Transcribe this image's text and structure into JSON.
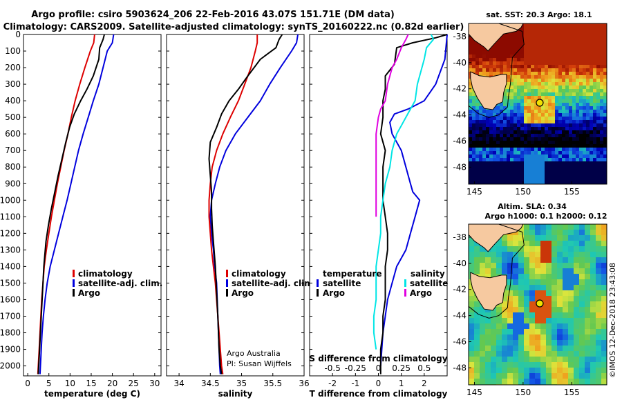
{
  "header": {
    "title_line1": "Argo profile: csiro 5903624_206 22-Feb-2016 43.07S 151.71E (DM data)",
    "title_line2": "Climatology: CARS2009. Satellite-adjusted climatology: synTS_20160222.nc (0.82d earlier)"
  },
  "credit": {
    "line1": "Argo Australia",
    "line2": "PI: Susan Wijffels"
  },
  "watermark": "©IMOS 12-Dec-2018 23:43:08",
  "colors": {
    "climatology": "#dd0000",
    "satellite": "#0000dd",
    "argo": "#000000",
    "sat_salinity": "#00e5e5",
    "argo_salinity": "#e000e0"
  },
  "chart_data": [
    {
      "type": "line",
      "xlabel": "temperature (deg C)",
      "xlim": [
        -1,
        31.5
      ],
      "xticks": [
        0,
        5,
        10,
        15,
        20,
        25,
        30
      ],
      "ylim": [
        2060,
        0
      ],
      "yticks": [
        0,
        100,
        200,
        300,
        400,
        500,
        600,
        700,
        800,
        900,
        1000,
        1100,
        1200,
        1300,
        1400,
        1500,
        1600,
        1700,
        1800,
        1900,
        2000
      ],
      "legend": [
        "climatology",
        "satellite-adj. clim.",
        "Argo"
      ],
      "series": [
        {
          "name": "climatology",
          "color": "#dd0000",
          "x": [
            15.8,
            15.6,
            14.8,
            13.5,
            12.3,
            11.2,
            10.3,
            9.5,
            8.6,
            7.8,
            7.0,
            6.3,
            5.6,
            5.0,
            4.4,
            3.9,
            3.6,
            3.3,
            3.1,
            2.9,
            2.7,
            2.5,
            2.4
          ],
          "y": [
            0,
            50,
            100,
            200,
            300,
            400,
            500,
            600,
            700,
            800,
            900,
            1000,
            1100,
            1200,
            1300,
            1400,
            1500,
            1600,
            1700,
            1800,
            1900,
            2000,
            2050
          ]
        },
        {
          "name": "satellite-adj. clim.",
          "color": "#0000dd",
          "x": [
            20.3,
            20.0,
            18.8,
            17.8,
            16.8,
            15.5,
            14.3,
            13.1,
            12.0,
            11.1,
            10.2,
            9.3,
            8.3,
            7.3,
            6.3,
            5.3,
            4.6,
            4.1,
            3.7,
            3.4,
            3.2,
            3.0,
            2.9
          ],
          "y": [
            0,
            50,
            100,
            200,
            300,
            400,
            500,
            600,
            700,
            800,
            900,
            1000,
            1100,
            1200,
            1300,
            1400,
            1500,
            1600,
            1700,
            1800,
            1900,
            2000,
            2050
          ]
        },
        {
          "name": "Argo",
          "color": "#000000",
          "x": [
            18.1,
            17.8,
            17.0,
            16.8,
            15.5,
            14.0,
            12.5,
            11.0,
            9.9,
            9.0,
            8.1,
            7.2,
            6.4,
            5.6,
            4.9,
            4.3,
            3.8,
            3.5,
            3.2,
            3.0,
            2.8,
            2.6,
            2.5
          ],
          "y": [
            0,
            30,
            80,
            150,
            250,
            330,
            400,
            480,
            560,
            650,
            750,
            850,
            950,
            1050,
            1150,
            1250,
            1400,
            1550,
            1700,
            1800,
            1900,
            2000,
            2050
          ]
        }
      ]
    },
    {
      "type": "line",
      "xlabel": "salinity",
      "xlim": [
        33.8,
        36.0
      ],
      "xticks": [
        34,
        34.5,
        35,
        35.5,
        36
      ],
      "ylim": [
        2060,
        0
      ],
      "legend": [
        "climatology",
        "satellite-adj. clim.",
        "Argo"
      ],
      "series": [
        {
          "name": "climatology",
          "color": "#dd0000",
          "x": [
            35.25,
            35.25,
            35.22,
            35.15,
            35.05,
            34.95,
            34.82,
            34.7,
            34.6,
            34.53,
            34.5,
            34.48,
            34.48,
            34.5,
            34.52,
            34.55,
            34.58,
            34.6,
            34.62,
            34.64,
            34.66,
            34.68,
            34.7
          ],
          "y": [
            0,
            50,
            100,
            200,
            300,
            400,
            500,
            600,
            700,
            800,
            900,
            1000,
            1100,
            1200,
            1300,
            1400,
            1500,
            1600,
            1700,
            1800,
            1900,
            2000,
            2050
          ]
        },
        {
          "name": "satellite-adj. clim.",
          "color": "#0000dd",
          "x": [
            35.9,
            35.88,
            35.8,
            35.62,
            35.45,
            35.3,
            35.1,
            34.9,
            34.75,
            34.65,
            34.58,
            34.52,
            34.5,
            34.52,
            34.55,
            34.57,
            34.6,
            34.61,
            34.62,
            34.63,
            34.64,
            34.65,
            34.66
          ],
          "y": [
            0,
            50,
            100,
            200,
            300,
            400,
            500,
            600,
            700,
            800,
            900,
            1000,
            1100,
            1200,
            1300,
            1400,
            1500,
            1600,
            1700,
            1800,
            1900,
            2000,
            2050
          ]
        },
        {
          "name": "Argo",
          "color": "#000000",
          "x": [
            35.65,
            35.6,
            35.55,
            35.3,
            35.1,
            34.95,
            34.8,
            34.68,
            34.6,
            34.5,
            34.48,
            34.5,
            34.52,
            34.52,
            34.53,
            34.55,
            34.58,
            34.6,
            34.62,
            34.63,
            34.64,
            34.66,
            34.68
          ],
          "y": [
            0,
            30,
            80,
            150,
            250,
            330,
            400,
            480,
            560,
            650,
            750,
            850,
            950,
            1050,
            1150,
            1250,
            1400,
            1550,
            1700,
            1800,
            1900,
            2000,
            2050
          ]
        }
      ]
    },
    {
      "type": "line",
      "xlabel": "T difference from climatology",
      "xlabel_top": "S difference from climatology",
      "xlim": [
        -3.0,
        3.0
      ],
      "xticks": [
        -2,
        -1,
        0,
        1,
        2
      ],
      "xticks_top": [
        "-0.5",
        "-0.25",
        "0",
        "0.25",
        "0.5"
      ],
      "ylim": [
        2060,
        0
      ],
      "legend_left_title": "temperature",
      "legend_right_title": "salinity",
      "legend_left": [
        "satellite",
        "Argo"
      ],
      "legend_right": [
        "satellite",
        "Argo"
      ],
      "series": [
        {
          "name": "satellite",
          "color": "#0000dd",
          "x": [
            3.0,
            2.9,
            2.5,
            2.0,
            1.3,
            0.7,
            0.5,
            0.6,
            1.0,
            1.2,
            1.4,
            1.5,
            1.8,
            1.6,
            1.4,
            1.2,
            0.8,
            0.6,
            0.4,
            0.3,
            0.2,
            0.1
          ],
          "y": [
            0,
            150,
            300,
            400,
            450,
            480,
            530,
            600,
            700,
            800,
            900,
            950,
            1000,
            1100,
            1200,
            1300,
            1400,
            1500,
            1600,
            1700,
            1800,
            2000
          ]
        },
        {
          "name": "Argo",
          "color": "#000000",
          "x": [
            3.0,
            2.5,
            1.5,
            0.8,
            0.7,
            0.3,
            0.3,
            0.2,
            0.2,
            0.1,
            0.3,
            0.2,
            0.2,
            0.2,
            0.3,
            0.4,
            0.4,
            0.3,
            0.3,
            0.3,
            0.2,
            0.2,
            0.1,
            0.1
          ],
          "y": [
            0,
            20,
            50,
            80,
            180,
            250,
            330,
            400,
            500,
            600,
            700,
            800,
            900,
            1000,
            1100,
            1200,
            1300,
            1400,
            1500,
            1600,
            1700,
            1800,
            1900,
            2050
          ]
        },
        {
          "name": "satellite",
          "color": "#00e5e5",
          "x": [
            2.3,
            2.4,
            2.1,
            2.0,
            1.8,
            1.7,
            1.6,
            1.4,
            1.2,
            1.0,
            0.8,
            0.6,
            0.5,
            0.3,
            0.2,
            0.1,
            0.1,
            0.0,
            -0.1,
            -0.1,
            -0.1,
            -0.2,
            -0.2,
            -0.1
          ],
          "y": [
            0,
            30,
            80,
            150,
            250,
            300,
            400,
            450,
            500,
            550,
            600,
            700,
            800,
            900,
            1000,
            1100,
            1200,
            1300,
            1400,
            1500,
            1600,
            1700,
            1800,
            1900
          ]
        },
        {
          "name": "Argo",
          "color": "#e000e0",
          "x": [
            1.3,
            1.2,
            1.0,
            0.8,
            0.6,
            0.4,
            0.3,
            0.1,
            0.0,
            -0.1,
            -0.1,
            -0.1,
            -0.1,
            -0.1,
            -0.1
          ],
          "y": [
            0,
            30,
            80,
            150,
            200,
            300,
            400,
            450,
            500,
            600,
            700,
            800,
            900,
            1000,
            1100
          ]
        }
      ]
    }
  ],
  "maps": [
    {
      "title": "sat. SST: 20.3 Argo: 18.1",
      "xticks": [
        "145",
        "150",
        "155"
      ],
      "yticks": [
        "-38",
        "-40",
        "-42",
        "-44",
        "-46",
        "-48"
      ]
    },
    {
      "title": "Altim. SLA: 0.34",
      "subtitle": "Argo h1000: 0.1 h2000: 0.12",
      "xticks": [
        "145",
        "150",
        "155"
      ],
      "yticks": [
        "-38",
        "-40",
        "-42",
        "-44",
        "-46",
        "-48"
      ]
    }
  ]
}
